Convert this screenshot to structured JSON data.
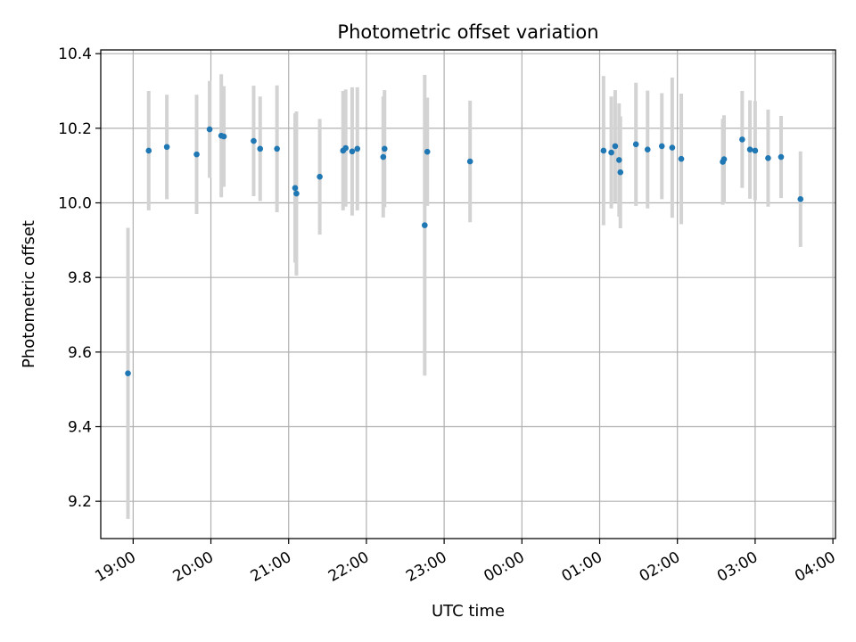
{
  "chart_data": {
    "type": "scatter",
    "title": "Photometric offset variation",
    "xlabel": "UTC time",
    "ylabel": "Photometric offset",
    "x_unit": "hours (UTC, continuing past midnight)",
    "xlim": [
      "18:35",
      "04:02"
    ],
    "ylim": [
      9.1,
      10.41
    ],
    "grid": true,
    "x_ticks": [
      "19:00",
      "20:00",
      "21:00",
      "22:00",
      "23:00",
      "00:00",
      "01:00",
      "02:00",
      "03:00",
      "04:00"
    ],
    "y_ticks": [
      "9.2",
      "9.4",
      "9.6",
      "9.8",
      "10.0",
      "10.2",
      "10.4"
    ],
    "colors": {
      "point": "#1f77b4",
      "errorbar": "#d3d3d3",
      "grid": "#b0b0b0"
    },
    "series": [
      {
        "points": [
          {
            "x": "18:56",
            "y": 9.543,
            "err": 0.39
          },
          {
            "x": "19:12",
            "y": 10.14,
            "err": 0.16
          },
          {
            "x": "19:26",
            "y": 10.15,
            "err": 0.14
          },
          {
            "x": "19:49",
            "y": 10.13,
            "err": 0.16
          },
          {
            "x": "19:59",
            "y": 10.197,
            "err": 0.13
          },
          {
            "x": "20:08",
            "y": 10.18,
            "err": 0.165
          },
          {
            "x": "20:10",
            "y": 10.178,
            "err": 0.135
          },
          {
            "x": "20:33",
            "y": 10.166,
            "err": 0.148
          },
          {
            "x": "20:38",
            "y": 10.145,
            "err": 0.14
          },
          {
            "x": "20:51",
            "y": 10.145,
            "err": 0.17
          },
          {
            "x": "21:05",
            "y": 10.04,
            "err": 0.2
          },
          {
            "x": "21:06",
            "y": 10.025,
            "err": 0.22
          },
          {
            "x": "21:24",
            "y": 10.07,
            "err": 0.155
          },
          {
            "x": "21:42",
            "y": 10.14,
            "err": 0.16
          },
          {
            "x": "21:44",
            "y": 10.147,
            "err": 0.157
          },
          {
            "x": "21:49",
            "y": 10.138,
            "err": 0.172
          },
          {
            "x": "21:53",
            "y": 10.145,
            "err": 0.165
          },
          {
            "x": "22:13",
            "y": 10.123,
            "err": 0.162
          },
          {
            "x": "22:14",
            "y": 10.145,
            "err": 0.157
          },
          {
            "x": "22:45",
            "y": 9.94,
            "err": 0.403
          },
          {
            "x": "22:47",
            "y": 10.137,
            "err": 0.145
          },
          {
            "x": "23:20",
            "y": 10.111,
            "err": 0.163
          },
          {
            "x": "01:03",
            "y": 10.14,
            "err": 0.2
          },
          {
            "x": "01:09",
            "y": 10.135,
            "err": 0.15
          },
          {
            "x": "01:12",
            "y": 10.152,
            "err": 0.15
          },
          {
            "x": "01:15",
            "y": 10.115,
            "err": 0.152
          },
          {
            "x": "01:16",
            "y": 10.082,
            "err": 0.15
          },
          {
            "x": "01:28",
            "y": 10.157,
            "err": 0.165
          },
          {
            "x": "01:37",
            "y": 10.143,
            "err": 0.158
          },
          {
            "x": "01:48",
            "y": 10.152,
            "err": 0.142
          },
          {
            "x": "01:56",
            "y": 10.148,
            "err": 0.188
          },
          {
            "x": "02:03",
            "y": 10.118,
            "err": 0.175
          },
          {
            "x": "02:35",
            "y": 10.11,
            "err": 0.115
          },
          {
            "x": "02:36",
            "y": 10.117,
            "err": 0.118
          },
          {
            "x": "02:50",
            "y": 10.17,
            "err": 0.13
          },
          {
            "x": "02:56",
            "y": 10.143,
            "err": 0.132
          },
          {
            "x": "03:00",
            "y": 10.14,
            "err": 0.133
          },
          {
            "x": "03:10",
            "y": 10.12,
            "err": 0.13
          },
          {
            "x": "03:20",
            "y": 10.123,
            "err": 0.11
          },
          {
            "x": "03:35",
            "y": 10.01,
            "err": 0.128
          }
        ]
      }
    ]
  }
}
